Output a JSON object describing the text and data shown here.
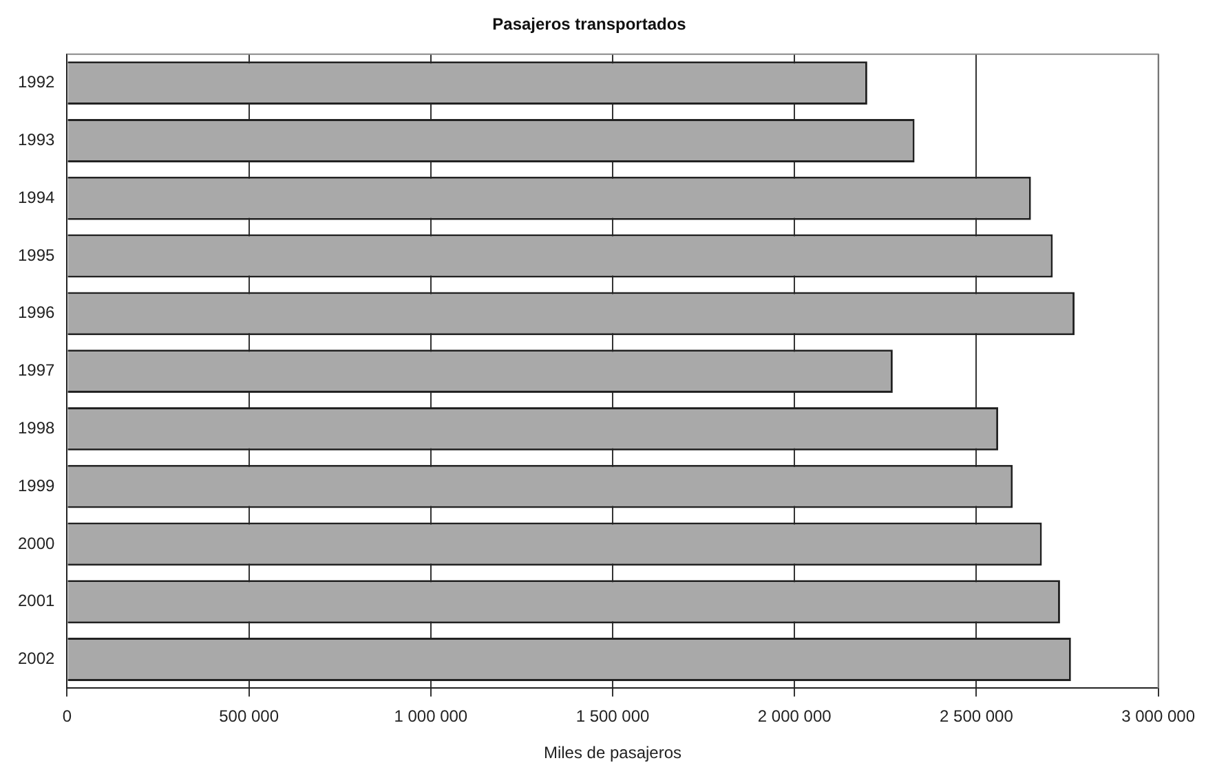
{
  "chart_data": {
    "type": "bar",
    "orientation": "horizontal",
    "title": "Pasajeros transportados",
    "xlabel": "Miles de pasajeros",
    "categories": [
      "1992",
      "1993",
      "1994",
      "1995",
      "1996",
      "1997",
      "1998",
      "1999",
      "2000",
      "2001",
      "2002"
    ],
    "values": [
      2200000,
      2330000,
      2650000,
      2710000,
      2770000,
      2270000,
      2560000,
      2600000,
      2680000,
      2730000,
      2760000
    ],
    "color": "#a9a9a9",
    "xlim": [
      0,
      3000000
    ],
    "xticks": [
      0,
      {
        "value": 500000,
        "label": "500 000"
      },
      {
        "value": 1000000,
        "label": "1 000 000"
      },
      {
        "value": 1500000,
        "label": "1 500 000"
      },
      {
        "value": 2000000,
        "label": "2 000 000"
      },
      {
        "value": 2500000,
        "label": "2 500 000"
      },
      {
        "value": 3000000,
        "label": "3 000 000"
      }
    ],
    "grid": "x",
    "legend": false
  }
}
